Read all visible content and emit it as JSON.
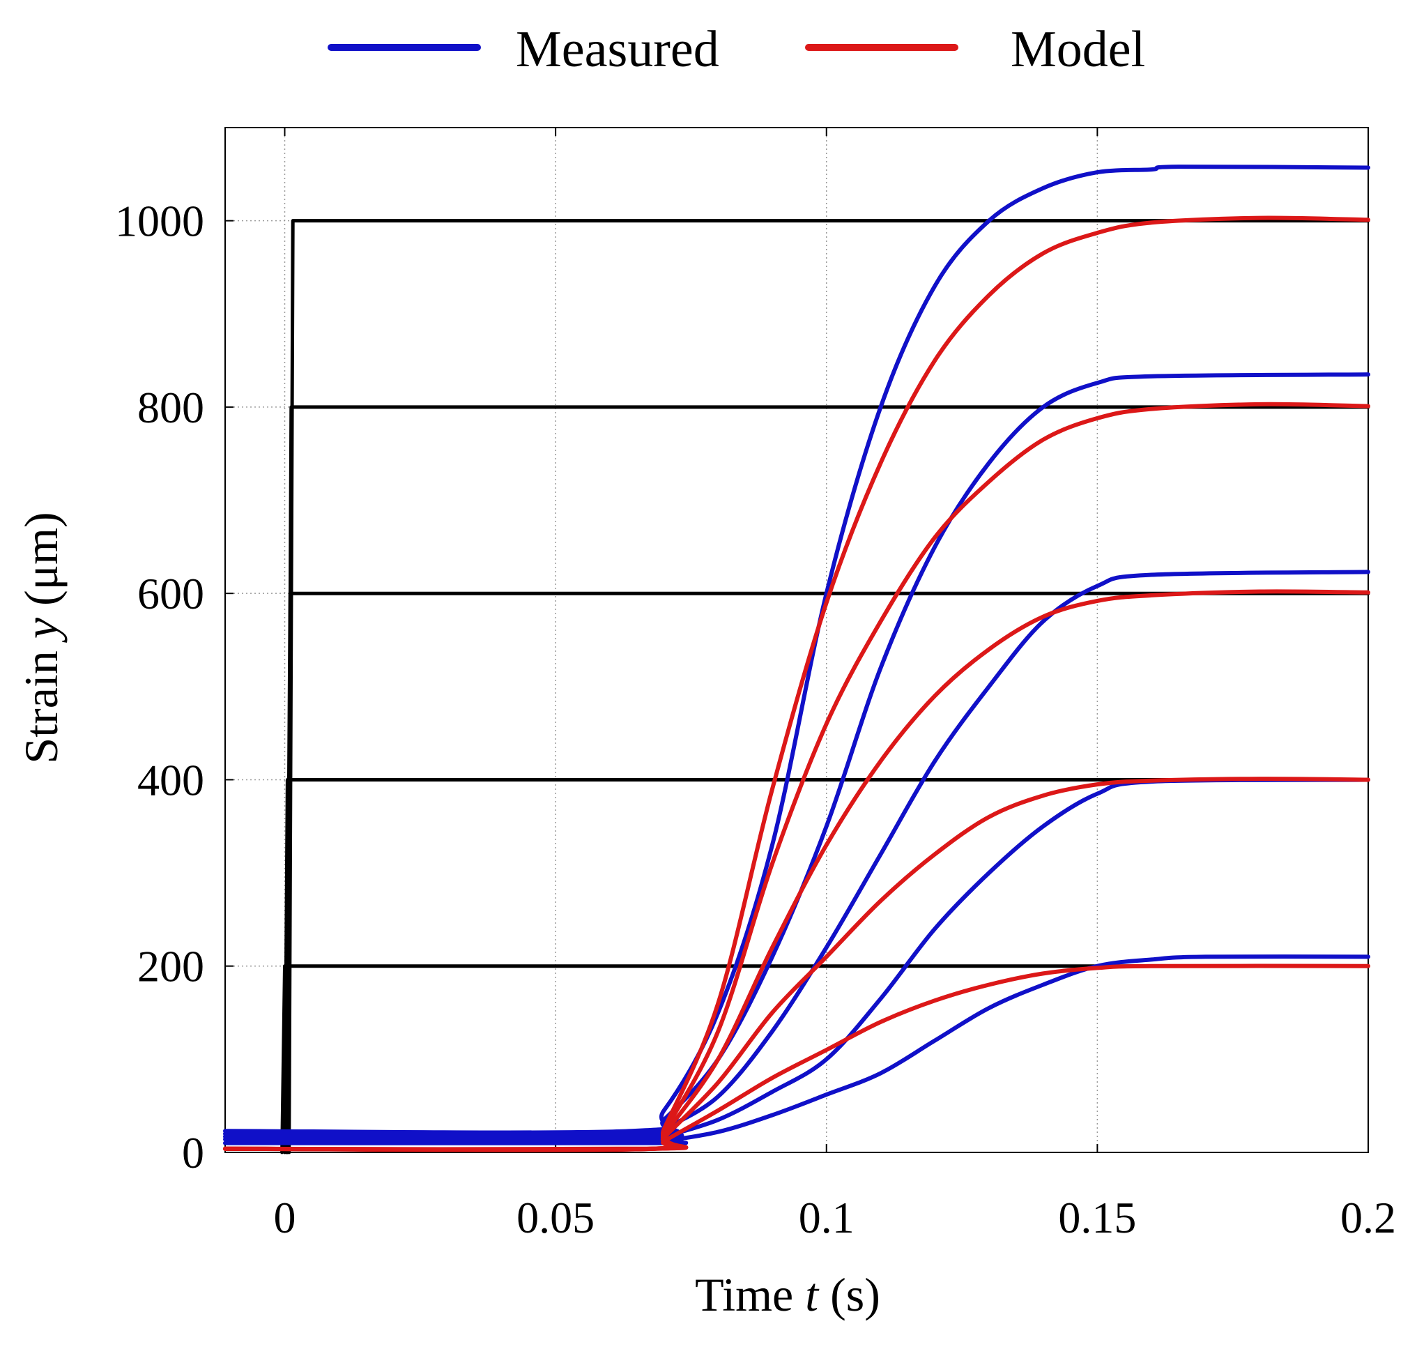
{
  "chart_data": {
    "type": "line",
    "title": "",
    "xlabel": {
      "prefix": "Time ",
      "var": "t",
      "suffix": " (s)"
    },
    "ylabel": {
      "prefix": "Strain ",
      "var": "y",
      "suffix": " (μm)"
    },
    "xlim": [
      -0.011,
      0.2
    ],
    "ylim": [
      0,
      1100
    ],
    "xticks": [
      0,
      0.05,
      0.1,
      0.15,
      0.2
    ],
    "xtick_labels": [
      "0",
      "0.05",
      "0.1",
      "0.15",
      "0.2"
    ],
    "yticks": [
      0,
      200,
      400,
      600,
      800,
      1000
    ],
    "ytick_labels": [
      "0",
      "200",
      "400",
      "600",
      "800",
      "1000"
    ],
    "grid": true,
    "legend": {
      "placement": "top",
      "entries": [
        {
          "label": "Measured",
          "color": "#1010c8"
        },
        {
          "label": "Model",
          "color": "#dc1818"
        }
      ]
    },
    "series": [
      {
        "name": "Reference 200",
        "color": "#000000",
        "points": [
          [
            -0.0005,
            0
          ],
          [
            0,
            200
          ],
          [
            0.2,
            200
          ]
        ]
      },
      {
        "name": "Reference 400",
        "color": "#000000",
        "points": [
          [
            0,
            0
          ],
          [
            0.0005,
            400
          ],
          [
            0.2,
            400
          ]
        ]
      },
      {
        "name": "Reference 600",
        "color": "#000000",
        "points": [
          [
            0.0003,
            0
          ],
          [
            0.001,
            600
          ],
          [
            0.2,
            600
          ]
        ]
      },
      {
        "name": "Reference 800",
        "color": "#000000",
        "points": [
          [
            0.0005,
            0
          ],
          [
            0.0012,
            800
          ],
          [
            0.2,
            800
          ]
        ]
      },
      {
        "name": "Reference 1000",
        "color": "#000000",
        "points": [
          [
            0.0008,
            0
          ],
          [
            0.0015,
            1000
          ],
          [
            0.2,
            1000
          ]
        ]
      },
      {
        "name": "Measured 1000",
        "color": "#1010c8",
        "points": [
          [
            -0.011,
            23
          ],
          [
            0.064,
            23
          ],
          [
            0.07,
            45
          ],
          [
            0.08,
            150
          ],
          [
            0.09,
            330
          ],
          [
            0.1,
            600
          ],
          [
            0.11,
            800
          ],
          [
            0.12,
            930
          ],
          [
            0.13,
            1000
          ],
          [
            0.14,
            1035
          ],
          [
            0.15,
            1052
          ],
          [
            0.16,
            1055
          ],
          [
            0.165,
            1058
          ],
          [
            0.2,
            1057
          ]
        ]
      },
      {
        "name": "Measured 800",
        "color": "#1010c8",
        "points": [
          [
            -0.011,
            20
          ],
          [
            0.066,
            20
          ],
          [
            0.07,
            35
          ],
          [
            0.08,
            100
          ],
          [
            0.09,
            210
          ],
          [
            0.1,
            350
          ],
          [
            0.11,
            520
          ],
          [
            0.12,
            650
          ],
          [
            0.13,
            740
          ],
          [
            0.14,
            800
          ],
          [
            0.15,
            826
          ],
          [
            0.16,
            833
          ],
          [
            0.2,
            835
          ]
        ]
      },
      {
        "name": "Measured 600",
        "color": "#1010c8",
        "points": [
          [
            -0.011,
            17
          ],
          [
            0.067,
            17
          ],
          [
            0.07,
            25
          ],
          [
            0.08,
            60
          ],
          [
            0.09,
            130
          ],
          [
            0.1,
            220
          ],
          [
            0.11,
            320
          ],
          [
            0.12,
            420
          ],
          [
            0.13,
            500
          ],
          [
            0.14,
            570
          ],
          [
            0.15,
            608
          ],
          [
            0.16,
            620
          ],
          [
            0.2,
            623
          ]
        ]
      },
      {
        "name": "Measured 400",
        "color": "#1010c8",
        "points": [
          [
            -0.011,
            14
          ],
          [
            0.067,
            14
          ],
          [
            0.07,
            17
          ],
          [
            0.08,
            35
          ],
          [
            0.09,
            65
          ],
          [
            0.1,
            100
          ],
          [
            0.11,
            165
          ],
          [
            0.12,
            240
          ],
          [
            0.13,
            300
          ],
          [
            0.14,
            350
          ],
          [
            0.15,
            385
          ],
          [
            0.16,
            398
          ],
          [
            0.2,
            400
          ]
        ]
      },
      {
        "name": "Measured 200",
        "color": "#1010c8",
        "points": [
          [
            -0.011,
            10
          ],
          [
            0.068,
            10
          ],
          [
            0.07,
            12
          ],
          [
            0.08,
            22
          ],
          [
            0.09,
            40
          ],
          [
            0.1,
            62
          ],
          [
            0.11,
            85
          ],
          [
            0.12,
            120
          ],
          [
            0.13,
            155
          ],
          [
            0.14,
            180
          ],
          [
            0.15,
            200
          ],
          [
            0.16,
            207
          ],
          [
            0.17,
            210
          ],
          [
            0.2,
            210
          ]
        ]
      },
      {
        "name": "Model 1000",
        "color": "#dc1818",
        "points": [
          [
            -0.011,
            4
          ],
          [
            0.068,
            4
          ],
          [
            0.07,
            25
          ],
          [
            0.08,
            160
          ],
          [
            0.09,
            390
          ],
          [
            0.1,
            590
          ],
          [
            0.11,
            740
          ],
          [
            0.12,
            850
          ],
          [
            0.13,
            920
          ],
          [
            0.14,
            965
          ],
          [
            0.15,
            987
          ],
          [
            0.16,
            998
          ],
          [
            0.18,
            1003
          ],
          [
            0.2,
            1001
          ]
        ]
      },
      {
        "name": "Model 800",
        "color": "#dc1818",
        "points": [
          [
            -0.011,
            4
          ],
          [
            0.068,
            4
          ],
          [
            0.07,
            22
          ],
          [
            0.08,
            130
          ],
          [
            0.09,
            310
          ],
          [
            0.1,
            460
          ],
          [
            0.11,
            570
          ],
          [
            0.12,
            660
          ],
          [
            0.13,
            720
          ],
          [
            0.14,
            765
          ],
          [
            0.15,
            788
          ],
          [
            0.16,
            798
          ],
          [
            0.18,
            803
          ],
          [
            0.2,
            801
          ]
        ]
      },
      {
        "name": "Model 600",
        "color": "#dc1818",
        "points": [
          [
            -0.011,
            4
          ],
          [
            0.068,
            4
          ],
          [
            0.07,
            19
          ],
          [
            0.08,
            100
          ],
          [
            0.09,
            220
          ],
          [
            0.1,
            330
          ],
          [
            0.11,
            420
          ],
          [
            0.12,
            490
          ],
          [
            0.13,
            540
          ],
          [
            0.14,
            575
          ],
          [
            0.15,
            592
          ],
          [
            0.16,
            598
          ],
          [
            0.18,
            602
          ],
          [
            0.2,
            601
          ]
        ]
      },
      {
        "name": "Model 400",
        "color": "#dc1818",
        "points": [
          [
            -0.011,
            4
          ],
          [
            0.068,
            4
          ],
          [
            0.07,
            16
          ],
          [
            0.08,
            75
          ],
          [
            0.09,
            150
          ],
          [
            0.1,
            210
          ],
          [
            0.11,
            270
          ],
          [
            0.12,
            320
          ],
          [
            0.13,
            360
          ],
          [
            0.14,
            383
          ],
          [
            0.15,
            395
          ],
          [
            0.16,
            399
          ],
          [
            0.18,
            401
          ],
          [
            0.2,
            400
          ]
        ]
      },
      {
        "name": "Model 200",
        "color": "#dc1818",
        "points": [
          [
            -0.011,
            4
          ],
          [
            0.068,
            4
          ],
          [
            0.07,
            12
          ],
          [
            0.08,
            45
          ],
          [
            0.09,
            80
          ],
          [
            0.1,
            110
          ],
          [
            0.11,
            140
          ],
          [
            0.12,
            163
          ],
          [
            0.13,
            180
          ],
          [
            0.14,
            192
          ],
          [
            0.15,
            198
          ],
          [
            0.16,
            200
          ],
          [
            0.2,
            200
          ]
        ]
      }
    ]
  }
}
